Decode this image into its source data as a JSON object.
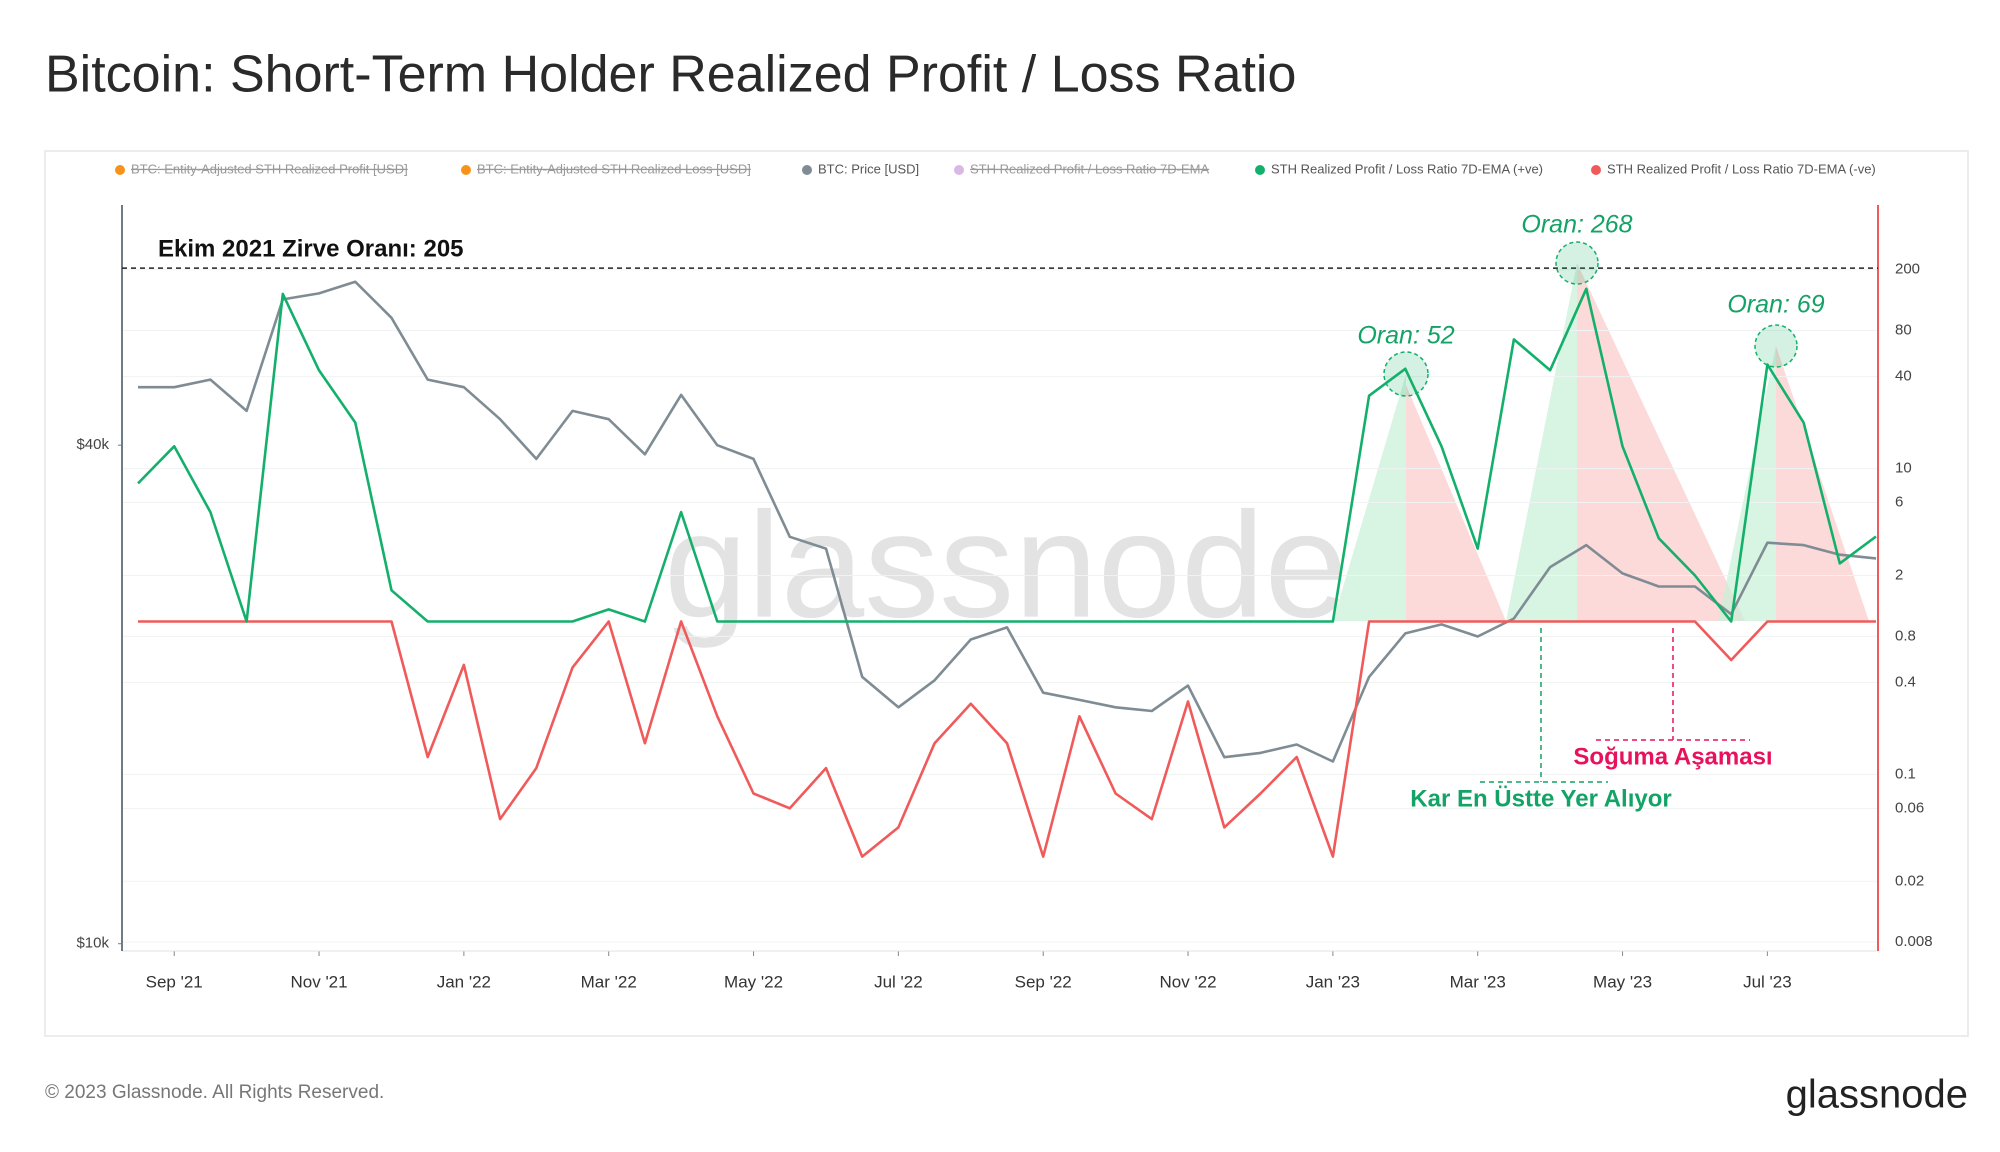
{
  "chart_data": {
    "type": "line",
    "title": "Bitcoin: Short-Term Holder Realized Profit / Loss Ratio",
    "footer": "© 2023 Glassnode. All Rights Reserved.",
    "logo": "glassnode",
    "watermark": "glassnode",
    "categories": [
      null,
      "Sep '21",
      null,
      null,
      null,
      "Nov '21",
      null,
      null,
      null,
      "Jan '22",
      null,
      null,
      null,
      "Mar '22",
      null,
      null,
      null,
      "May '22",
      null,
      null,
      null,
      "Jul '22",
      null,
      null,
      null,
      "Sep '22",
      null,
      null,
      null,
      "Nov '22",
      null,
      null,
      null,
      "Jan '23",
      null,
      null,
      null,
      "Mar '23",
      null,
      null,
      null,
      "May '23",
      null,
      null,
      null,
      "Jul '23",
      null,
      null,
      null
    ],
    "series": [
      {
        "name": "BTC: Entity-Adjusted STH Realized Profit [USD]",
        "color": "#f7931a",
        "disabled": true
      },
      {
        "name": "BTC: Entity-Adjusted STH Realized Loss [USD]",
        "color": "#f7931a",
        "disabled": true
      },
      {
        "name": "BTC: Price [USD]",
        "color": "#7f8c94",
        "axis": "y",
        "values": [
          47000,
          47000,
          48000,
          44000,
          60000,
          61000,
          63000,
          57000,
          48000,
          47000,
          43000,
          38500,
          44000,
          43000,
          39000,
          46000,
          40000,
          38500,
          31000,
          30000,
          21000,
          19300,
          20800,
          23300,
          24100,
          20100,
          19700,
          19300,
          19100,
          20500,
          16800,
          17000,
          17400,
          16600,
          21000,
          23700,
          24300,
          23500,
          24700,
          28500,
          30300,
          28000,
          27000,
          27000,
          25000,
          30500,
          30300,
          29500,
          29200
        ]
      },
      {
        "name": "STH Realized Profit / Loss Ratio 7D-EMA",
        "color": "#d9b8e6",
        "disabled": true
      },
      {
        "name": "STH Realized Profit / Loss Ratio 7D-EMA (-ve)",
        "color": "#f05a5a",
        "axis": "y2",
        "values": [
          1,
          1,
          1,
          1,
          1,
          1,
          1,
          1,
          0.13,
          0.52,
          0.051,
          0.11,
          0.5,
          1,
          0.16,
          1,
          0.24,
          0.075,
          0.06,
          0.11,
          0.029,
          0.045,
          0.16,
          0.29,
          0.16,
          0.029,
          0.24,
          0.075,
          0.051,
          0.3,
          0.045,
          0.075,
          0.13,
          0.029,
          1,
          1,
          1,
          1,
          1,
          1,
          1,
          1,
          1,
          1,
          0.56,
          1,
          1,
          1,
          1
        ]
      },
      {
        "name": "STH Realized Profit / Loss Ratio 7D-EMA (+ve)",
        "color": "#14b06b",
        "axis": "y2",
        "values": [
          8,
          14,
          5.2,
          1,
          139,
          44,
          20,
          1.6,
          1,
          1,
          1,
          1,
          1,
          1.2,
          1,
          5.2,
          1,
          1,
          1,
          1,
          1,
          1,
          1,
          1,
          1,
          1,
          1,
          1,
          1,
          1,
          1,
          1,
          1,
          1,
          30,
          45,
          14,
          3,
          70,
          44,
          150,
          14,
          3.5,
          2,
          1,
          48,
          20,
          2.4,
          3.6
        ]
      }
    ],
    "legend_order": [
      0,
      1,
      2,
      3,
      5,
      4
    ],
    "log_scale": true,
    "ylim": [
      9800,
      78000
    ],
    "yticks": [
      {
        "value": 10000,
        "label": "$10k"
      },
      {
        "value": 40000,
        "label": "$40k"
      }
    ],
    "y2lim": [
      0.007,
      530
    ],
    "y2ticks": [
      0.008,
      0.02,
      0.06,
      0.1,
      0.4,
      0.8,
      2,
      6,
      10,
      40,
      80,
      200
    ],
    "grid": true,
    "reference_line": {
      "value": 205,
      "label": "Ekim 2021  Zirve Oranı: 205"
    },
    "annotations": [
      "Oran: 52",
      "Oran: 268",
      "Oran: 69",
      "Soğuma Aşaması",
      "Kar En Üstte Yer Alıyor"
    ]
  }
}
